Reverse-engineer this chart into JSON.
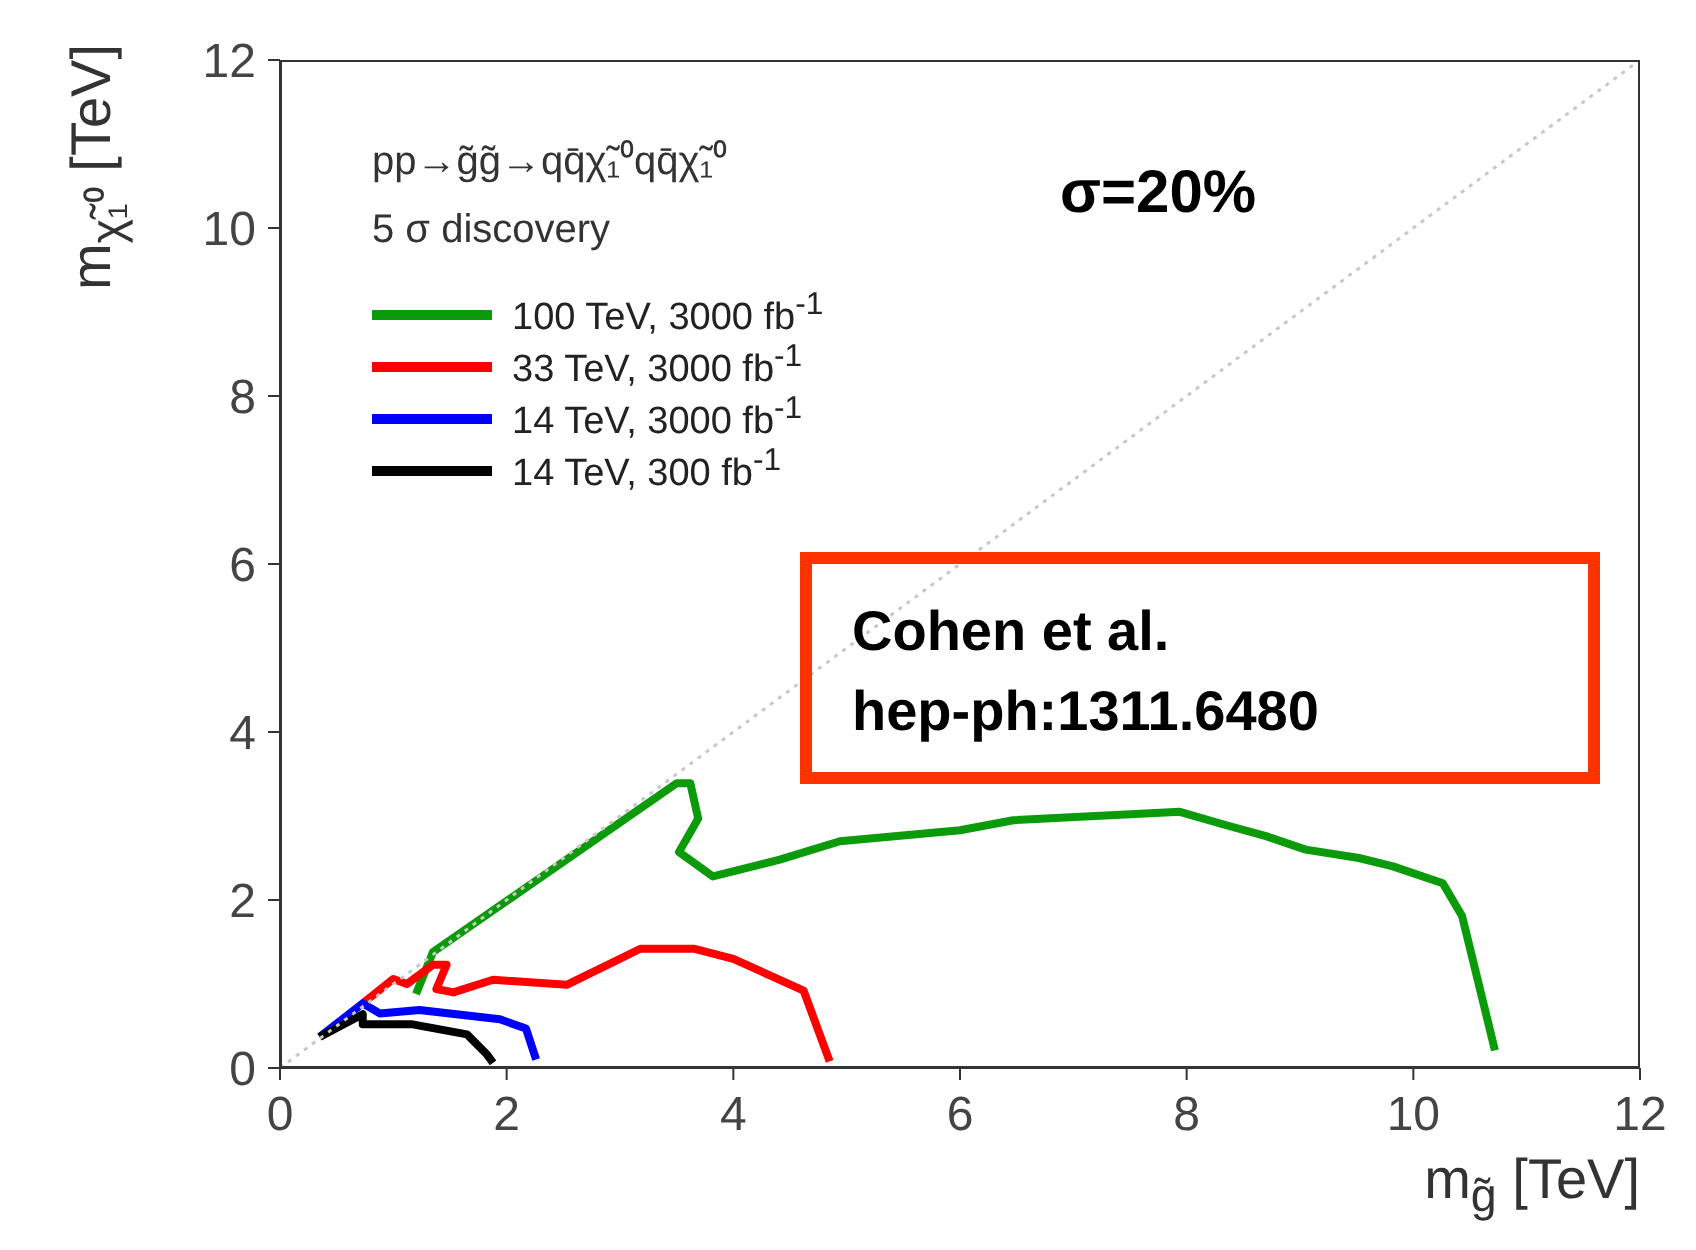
{
  "chart_data": {
    "type": "line",
    "xlabel": "m$_{g̃}$ [TeV]",
    "ylabel": "m$_{χ̃₁⁰}$ [TeV]",
    "xlim": [
      0,
      12
    ],
    "ylim": [
      0,
      12
    ],
    "xticks": [
      0,
      2,
      4,
      6,
      8,
      10,
      12
    ],
    "yticks": [
      0,
      2,
      4,
      6,
      8,
      10,
      12
    ],
    "grid": false,
    "legend": "top left",
    "marker": "none",
    "annotations": [
      "pp→g̃g̃→qq̄χ̃₁⁰qq̄χ̃₁⁰",
      "5 σ discovery",
      "σ=20%",
      "Cohen et al.",
      "hep-ph:1311.6480"
    ],
    "series": [
      {
        "name": "100 TeV, 3000 fb$^{-1}$",
        "color": "#0a9a0a",
        "line_style": "solid",
        "x": [
          1.2,
          1.35,
          3.5,
          3.62,
          3.69,
          3.52,
          3.82,
          4.41,
          4.94,
          5.76,
          6.0,
          6.47,
          7.94,
          8.35,
          8.7,
          9.05,
          9.52,
          9.82,
          10.26,
          10.43,
          10.72
        ],
        "values": [
          0.88,
          1.38,
          3.39,
          3.39,
          2.97,
          2.57,
          2.28,
          2.48,
          2.7,
          2.8,
          2.83,
          2.95,
          3.05,
          2.89,
          2.76,
          2.6,
          2.5,
          2.4,
          2.2,
          1.81,
          0.21
        ]
      },
      {
        "name": "33 TeV, 3000 fb$^{-1}$",
        "color": "#ff0000",
        "line_style": "solid",
        "x": [
          0.73,
          1.0,
          1.12,
          1.35,
          1.47,
          1.38,
          1.53,
          1.88,
          2.53,
          3.18,
          3.65,
          4.0,
          4.62,
          4.85
        ],
        "values": [
          0.77,
          1.06,
          1.0,
          1.23,
          1.23,
          0.94,
          0.9,
          1.05,
          0.99,
          1.42,
          1.42,
          1.3,
          0.92,
          0.08
        ]
      },
      {
        "name": "14 TeV, 3000 fb$^{-1}$",
        "color": "#0000ff",
        "line_style": "solid",
        "x": [
          0.35,
          0.73,
          0.88,
          1.23,
          1.94,
          2.17,
          2.26
        ],
        "values": [
          0.37,
          0.77,
          0.65,
          0.69,
          0.58,
          0.47,
          0.1
        ]
      },
      {
        "name": "14 TeV, 300 fb$^{-1}$",
        "color": "#000000",
        "line_style": "solid",
        "x": [
          0.35,
          0.73,
          0.73,
          1.17,
          1.65,
          1.82,
          1.88
        ],
        "values": [
          0.37,
          0.64,
          0.52,
          0.52,
          0.4,
          0.17,
          0.06
        ]
      },
      {
        "color": "#c8c8c8",
        "line_style": "dotted",
        "x": [
          0,
          12
        ],
        "values": [
          0,
          12
        ]
      }
    ]
  }
}
